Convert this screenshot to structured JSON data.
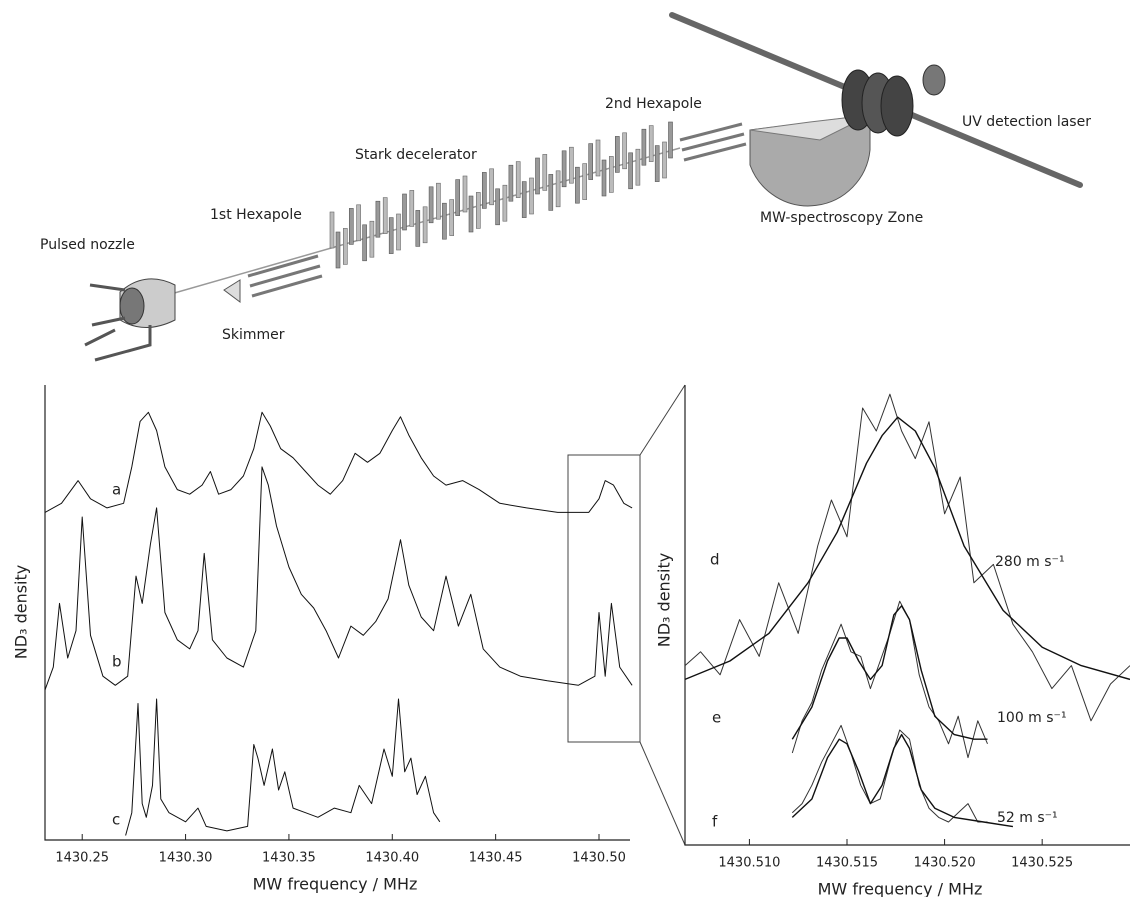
{
  "diagram": {
    "labels": [
      "Pulsed nozzle",
      "1st Hexapole",
      "Skimmer",
      "Stark decelerator",
      "2nd Hexapole",
      "MW-spectroscopy Zone",
      "UV detection laser"
    ]
  },
  "chart_data": [
    {
      "type": "line",
      "xlabel": "MW frequency / MHz",
      "ylabel": "ND₃ density",
      "xlim": [
        1430.232,
        1430.515
      ],
      "ylim": [
        0,
        10
      ],
      "xticks": [
        1430.25,
        {
          "value": 1430.3,
          "label": "1430.30"
        },
        1430.35,
        {
          "value": 1430.4,
          "label": "1430.40"
        },
        1430.45,
        {
          "value": 1430.5,
          "label": "1430.50"
        }
      ],
      "series": [
        {
          "name": "a",
          "color": "#111111",
          "x": [
            1430.232,
            1430.24,
            1430.248,
            1430.254,
            1430.262,
            1430.27,
            1430.274,
            1430.278,
            1430.282,
            1430.286,
            1430.29,
            1430.296,
            1430.302,
            1430.308,
            1430.312,
            1430.316,
            1430.322,
            1430.328,
            1430.333,
            1430.337,
            1430.341,
            1430.346,
            1430.352,
            1430.358,
            1430.364,
            1430.37,
            1430.376,
            1430.382,
            1430.388,
            1430.394,
            1430.4,
            1430.404,
            1430.408,
            1430.414,
            1430.42,
            1430.426,
            1430.434,
            1430.442,
            1430.452,
            1430.465,
            1430.48,
            1430.495,
            1430.5,
            1430.503,
            1430.507,
            1430.512,
            1430.516
          ],
          "values": [
            7.2,
            7.4,
            7.9,
            7.5,
            7.3,
            7.4,
            8.2,
            9.2,
            9.4,
            9.0,
            8.2,
            7.7,
            7.6,
            7.8,
            8.1,
            7.6,
            7.7,
            8.0,
            8.6,
            9.4,
            9.1,
            8.6,
            8.4,
            8.1,
            7.8,
            7.6,
            7.9,
            8.5,
            8.3,
            8.5,
            9.0,
            9.3,
            8.9,
            8.4,
            8.0,
            7.8,
            7.9,
            7.7,
            7.4,
            7.3,
            7.2,
            7.2,
            7.5,
            7.9,
            7.8,
            7.4,
            7.3
          ]
        },
        {
          "name": "b",
          "color": "#111111",
          "x": [
            1430.232,
            1430.236,
            1430.239,
            1430.243,
            1430.247,
            1430.25,
            1430.254,
            1430.26,
            1430.266,
            1430.272,
            1430.276,
            1430.279,
            1430.283,
            1430.286,
            1430.29,
            1430.296,
            1430.302,
            1430.306,
            1430.309,
            1430.313,
            1430.32,
            1430.328,
            1430.334,
            1430.337,
            1430.34,
            1430.344,
            1430.35,
            1430.356,
            1430.362,
            1430.368,
            1430.374,
            1430.38,
            1430.386,
            1430.392,
            1430.398,
            1430.404,
            1430.408,
            1430.414,
            1430.42,
            1430.426,
            1430.432,
            1430.438,
            1430.444,
            1430.452,
            1430.462,
            1430.475,
            1430.49,
            1430.498,
            1430.5,
            1430.503,
            1430.506,
            1430.51,
            1430.516
          ],
          "values": [
            3.3,
            3.8,
            5.2,
            4.0,
            4.6,
            7.1,
            4.5,
            3.6,
            3.4,
            3.6,
            5.8,
            5.2,
            6.5,
            7.3,
            5.0,
            4.4,
            4.2,
            4.6,
            6.3,
            4.4,
            4.0,
            3.8,
            4.6,
            8.2,
            7.8,
            6.9,
            6.0,
            5.4,
            5.1,
            4.6,
            4.0,
            4.7,
            4.5,
            4.8,
            5.3,
            6.6,
            5.6,
            4.9,
            4.6,
            5.8,
            4.7,
            5.4,
            4.2,
            3.8,
            3.6,
            3.5,
            3.4,
            3.6,
            5.0,
            3.6,
            5.2,
            3.8,
            3.4
          ]
        },
        {
          "name": "c",
          "color": "#111111",
          "x": [
            1430.271,
            1430.274,
            1430.277,
            1430.279,
            1430.281,
            1430.284,
            1430.286,
            1430.288,
            1430.292,
            1430.3,
            1430.306,
            1430.31,
            1430.32,
            1430.33,
            1430.333,
            1430.335,
            1430.338,
            1430.342,
            1430.345,
            1430.348,
            1430.352,
            1430.358,
            1430.364,
            1430.372,
            1430.38,
            1430.384,
            1430.39,
            1430.396,
            1430.4,
            1430.403,
            1430.406,
            1430.409,
            1430.412,
            1430.416,
            1430.42,
            1430.423
          ],
          "values": [
            0.1,
            0.6,
            3.0,
            0.8,
            0.5,
            1.2,
            3.1,
            0.9,
            0.6,
            0.4,
            0.7,
            0.3,
            0.2,
            0.3,
            2.1,
            1.8,
            1.2,
            2.0,
            1.1,
            1.5,
            0.7,
            0.6,
            0.5,
            0.7,
            0.6,
            1.2,
            0.8,
            2.0,
            1.4,
            3.1,
            1.5,
            1.8,
            1.0,
            1.4,
            0.6,
            0.4
          ]
        }
      ]
    },
    {
      "type": "line",
      "xlabel": "MW frequency / MHz",
      "ylabel": "ND₃ density",
      "xlim": [
        1430.5067,
        1430.5295
      ],
      "ylim": [
        0,
        10
      ],
      "xticks": [
        {
          "value": 1430.51,
          "label": "1430.510"
        },
        1430.515,
        {
          "value": 1430.52,
          "label": "1430.520"
        },
        1430.525
      ],
      "series": [
        {
          "name": "d",
          "color": "#333333",
          "annotation": "280 m s⁻¹",
          "x": [
            1430.5067,
            1430.5075,
            1430.5085,
            1430.5095,
            1430.5105,
            1430.5115,
            1430.5125,
            1430.5135,
            1430.5142,
            1430.515,
            1430.5158,
            1430.5165,
            1430.5172,
            1430.5178,
            1430.5185,
            1430.5192,
            1430.52,
            1430.5208,
            1430.5215,
            1430.5225,
            1430.5235,
            1430.5245,
            1430.5255,
            1430.5265,
            1430.5275,
            1430.5285,
            1430.5295
          ],
          "values": [
            3.9,
            4.2,
            3.7,
            4.9,
            4.1,
            5.7,
            4.6,
            6.5,
            7.5,
            6.7,
            9.5,
            9.0,
            9.8,
            9.0,
            8.4,
            9.2,
            7.2,
            8.0,
            5.7,
            6.1,
            4.8,
            4.2,
            3.4,
            3.9,
            2.7,
            3.5,
            3.9
          ]
        },
        {
          "color": "#111111",
          "x": [
            1430.5067,
            1430.509,
            1430.511,
            1430.513,
            1430.5145,
            1430.516,
            1430.5168,
            1430.5176,
            1430.5185,
            1430.5195,
            1430.521,
            1430.523,
            1430.525,
            1430.527,
            1430.5295
          ],
          "values": [
            3.6,
            4.0,
            4.6,
            5.7,
            6.8,
            8.3,
            8.9,
            9.3,
            9.0,
            8.2,
            6.5,
            5.1,
            4.3,
            3.9,
            3.6
          ]
        },
        {
          "name": "e",
          "color": "#333333",
          "annotation": "100 m s⁻¹",
          "x": [
            1430.5122,
            1430.5127,
            1430.5132,
            1430.5137,
            1430.5142,
            1430.5147,
            1430.5152,
            1430.5157,
            1430.5162,
            1430.5167,
            1430.5172,
            1430.5177,
            1430.5182,
            1430.5187,
            1430.5192,
            1430.5197,
            1430.5202,
            1430.5207,
            1430.5212,
            1430.5217,
            1430.5222
          ],
          "values": [
            2.0,
            2.7,
            3.1,
            3.8,
            4.3,
            4.8,
            4.2,
            4.1,
            3.4,
            4.0,
            4.6,
            5.3,
            4.9,
            3.7,
            3.0,
            2.7,
            2.2,
            2.8,
            1.9,
            2.7,
            2.2
          ]
        },
        {
          "color": "#111111",
          "x": [
            1430.5122,
            1430.5132,
            1430.514,
            1430.5146,
            1430.515,
            1430.5156,
            1430.5162,
            1430.5168,
            1430.5174,
            1430.5178,
            1430.5182,
            1430.5188,
            1430.5195,
            1430.5205,
            1430.5215,
            1430.5222
          ],
          "values": [
            2.3,
            3.0,
            4.0,
            4.5,
            4.5,
            4.0,
            3.6,
            3.9,
            5.0,
            5.2,
            4.9,
            3.8,
            2.8,
            2.4,
            2.3,
            2.3
          ]
        },
        {
          "name": "f",
          "color": "#333333",
          "annotation": "52 m s⁻¹",
          "x": [
            1430.5122,
            1430.5127,
            1430.5132,
            1430.5137,
            1430.5142,
            1430.5147,
            1430.5152,
            1430.5157,
            1430.5162,
            1430.5167,
            1430.5172,
            1430.5177,
            1430.5182,
            1430.5187,
            1430.5192,
            1430.5197,
            1430.5202,
            1430.5207,
            1430.5212,
            1430.5217,
            1430.5222
          ],
          "values": [
            0.7,
            0.9,
            1.3,
            1.8,
            2.2,
            2.6,
            2.0,
            1.3,
            0.9,
            1.0,
            1.8,
            2.5,
            2.3,
            1.3,
            0.8,
            0.6,
            0.5,
            0.7,
            0.9,
            0.5,
            0.5
          ]
        },
        {
          "color": "#111111",
          "x": [
            1430.5122,
            1430.5132,
            1430.514,
            1430.5146,
            1430.515,
            1430.5156,
            1430.5162,
            1430.5168,
            1430.5174,
            1430.5178,
            1430.5182,
            1430.5188,
            1430.5195,
            1430.5205,
            1430.522,
            1430.5235
          ],
          "values": [
            0.6,
            1.0,
            1.9,
            2.3,
            2.2,
            1.6,
            0.9,
            1.3,
            2.1,
            2.4,
            2.1,
            1.2,
            0.8,
            0.6,
            0.5,
            0.4
          ]
        }
      ]
    }
  ]
}
